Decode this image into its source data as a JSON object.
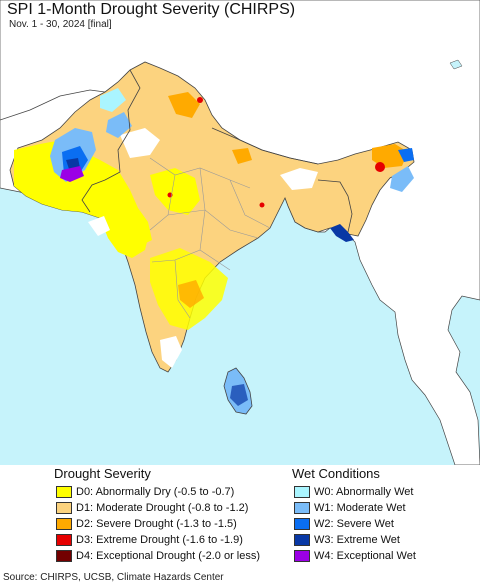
{
  "map": {
    "title": "SPI 1-Month Drought Severity (CHIRPS)",
    "subtitle": "Nov. 1 - 30, 2024 [final]",
    "source": "Source: CHIRPS, UCSB, Climate Hazards Center",
    "colors": {
      "ocean": "#c6f3fb",
      "land_nodata": "#ffffff",
      "outside_land": "#ffffff",
      "borders": "#444444",
      "subnational_borders": "#9a9a9a"
    }
  },
  "legend": {
    "drought": {
      "title": "Drought Severity",
      "items": [
        {
          "code": "D0",
          "label": "D0: Abnormally Dry (-0.5 to -0.7)",
          "color": "#ffff00"
        },
        {
          "code": "D1",
          "label": "D1: Moderate Drought (-0.8 to -1.2)",
          "color": "#fcd37f"
        },
        {
          "code": "D2",
          "label": "D2: Severe Drought (-1.3 to -1.5)",
          "color": "#ffaa00"
        },
        {
          "code": "D3",
          "label": "D3: Extreme Drought (-1.6 to -1.9)",
          "color": "#e60000"
        },
        {
          "code": "D4",
          "label": "D4: Exceptional Drought (-2.0 or less)",
          "color": "#730000"
        }
      ]
    },
    "wet": {
      "title": "Wet Conditions",
      "items": [
        {
          "code": "W0",
          "label": "W0: Abnormally Wet",
          "color": "#aaf5ff"
        },
        {
          "code": "W1",
          "label": "W1: Moderate Wet",
          "color": "#7abcf8"
        },
        {
          "code": "W2",
          "label": "W2: Severe Wet",
          "color": "#0a6ef2"
        },
        {
          "code": "W3",
          "label": "W3: Extreme Wet",
          "color": "#0838a5"
        },
        {
          "code": "W4",
          "label": "W4: Exceptional Wet",
          "color": "#9b00e6"
        }
      ]
    }
  }
}
